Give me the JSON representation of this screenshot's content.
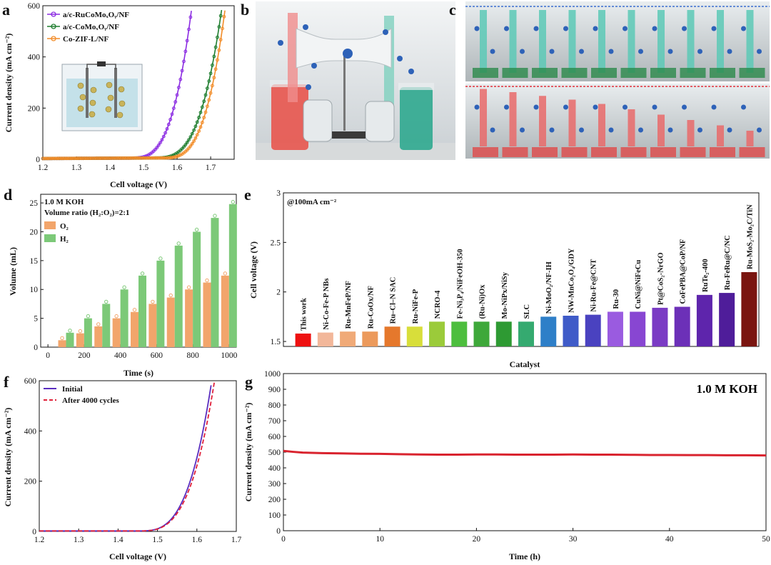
{
  "panel_labels": [
    "a",
    "b",
    "c",
    "d",
    "e",
    "f",
    "g"
  ],
  "colors": {
    "purple": "#8B2BE2",
    "green": "#1E7D2E",
    "orange": "#F28C28",
    "o2_bar": "#F2A56B",
    "h2_bar": "#7CC978",
    "initial": "#5A2DBF",
    "after": "#E0203A",
    "stability": "#D9232E",
    "acid": "#E8554E",
    "base": "#2FA88F"
  },
  "chart_data": [
    {
      "id": "a",
      "type": "line",
      "xlabel": "Cell voltage (V)",
      "ylabel": "Current density (mA cm⁻²)",
      "xlim": [
        1.2,
        1.77
      ],
      "ylim": [
        0,
        600
      ],
      "xticks": [
        1.2,
        1.3,
        1.4,
        1.5,
        1.6,
        1.7
      ],
      "yticks": [
        0,
        200,
        400,
        600
      ],
      "series": [
        {
          "name": "a/c-RuCoMoₓOᵧ/NF",
          "color": "#8B2BE2",
          "marker": "circle",
          "onset": 1.46,
          "v600": 1.645
        },
        {
          "name": "a/c-CoMoₓOᵧ/NF",
          "color": "#1E7D2E",
          "marker": "circle",
          "onset": 1.53,
          "v600": 1.735
        },
        {
          "name": "Co-ZIF-L/NF",
          "color": "#F28C28",
          "marker": "circle",
          "onset": 1.555,
          "v600": 1.745
        }
      ]
    },
    {
      "id": "d",
      "type": "bar",
      "annotations": [
        "1.0 M KOH",
        "Volume ratio (H₂:O₂)=2:1"
      ],
      "xlabel": "Time (s)",
      "ylabel": "Volume (mL)",
      "xlim": [
        -40,
        1040
      ],
      "ylim": [
        0,
        26.5
      ],
      "xticks": [
        0,
        200,
        400,
        600,
        800,
        1000
      ],
      "yticks": [
        0,
        5,
        10,
        15,
        20,
        25
      ],
      "x": [
        100,
        200,
        300,
        400,
        500,
        600,
        700,
        800,
        900,
        1000
      ],
      "series": [
        {
          "name": "O₂",
          "values": [
            1.2,
            2.4,
            3.6,
            5.0,
            6.1,
            7.5,
            8.6,
            10.0,
            11.2,
            12.4
          ]
        },
        {
          "name": "H₂",
          "values": [
            2.5,
            5.0,
            7.5,
            10.0,
            12.4,
            15.0,
            17.6,
            20.0,
            22.4,
            24.8
          ]
        }
      ]
    },
    {
      "id": "e",
      "type": "bar",
      "annotation": "@100mA cm⁻²",
      "xlabel": "Catalyst",
      "ylabel": "Cell voltage (V)",
      "ylim": [
        1.45,
        3.0
      ],
      "yticks": [
        1.5,
        2.0,
        2.5,
        3.0
      ],
      "categories": [
        "This work",
        "Ni-Co-Fe-P NBs",
        "Ru-MnFeP/NF",
        "Ru-CoOx/NF",
        "Ru–Cl–N SAC",
        "Ru-NiFe-P",
        "NCRO-4",
        "Fe-Ni₃P₄/NiFeOH-350",
        "(Ru-Ni)Ox",
        "Mo-NiPx/NiSy",
        "SLC",
        "Ni-MoO₂/NF-IH",
        "NW-MnCo₂O₄/GDY",
        "Ni-Ru-Fe@CNT",
        "Ru-30",
        "CuNi@NiFeCu",
        "Pt@CoS₂-NrGO",
        "CoFePBA@CoP/NF",
        "RuTe₂-400",
        "Ru-FeRu@C/NC",
        "Ru-MoS₂-Mo₂C/TiN"
      ],
      "values": [
        1.58,
        1.59,
        1.6,
        1.6,
        1.65,
        1.65,
        1.7,
        1.7,
        1.7,
        1.7,
        1.7,
        1.75,
        1.76,
        1.77,
        1.8,
        1.8,
        1.84,
        1.85,
        1.97,
        1.99,
        2.2
      ],
      "bar_colors": [
        "#EE1111",
        "#F2B79A",
        "#F0AA78",
        "#EC9A5C",
        "#E5782C",
        "#D8DE3A",
        "#9BCB3A",
        "#4DBE3E",
        "#3EA83A",
        "#2E9A33",
        "#35AA70",
        "#2E7FC8",
        "#3F5BC8",
        "#4A42C0",
        "#9A5BE0",
        "#8846D2",
        "#7A3BC4",
        "#6C30B8",
        "#5E25AC",
        "#4F1D9A",
        "#7A1510"
      ]
    },
    {
      "id": "f",
      "type": "line",
      "xlabel": "Cell voltage (V)",
      "ylabel": "Current density (mA cm⁻²)",
      "xlim": [
        1.2,
        1.7
      ],
      "ylim": [
        0,
        600
      ],
      "xticks": [
        1.2,
        1.3,
        1.4,
        1.5,
        1.6,
        1.7
      ],
      "yticks": [
        0,
        200,
        400,
        600
      ],
      "series": [
        {
          "name": "Initial",
          "color": "#5A2DBF",
          "style": "solid",
          "onset": 1.45,
          "v600": 1.638
        },
        {
          "name": "After 4000 cycles",
          "color": "#E0203A",
          "style": "dashed",
          "onset": 1.45,
          "v600": 1.645
        }
      ]
    },
    {
      "id": "g",
      "type": "line",
      "annotation": "1.0 M KOH",
      "xlabel": "Time (h)",
      "ylabel": "Current density (mA cm⁻²)",
      "xlim": [
        0,
        50
      ],
      "ylim": [
        0,
        1000
      ],
      "xticks": [
        0,
        10,
        20,
        30,
        40,
        50
      ],
      "yticks": [
        0,
        100,
        200,
        300,
        400,
        500,
        600,
        700,
        800,
        900,
        1000
      ],
      "x": [
        0,
        1,
        2,
        4,
        6,
        8,
        10,
        12,
        14,
        16,
        18,
        20,
        22,
        24,
        26,
        28,
        30,
        32,
        34,
        36,
        38,
        40,
        42,
        44,
        46,
        48,
        50
      ],
      "y": [
        508,
        502,
        497,
        494,
        492,
        490,
        489,
        487,
        485,
        484,
        484,
        485,
        485,
        484,
        484,
        484,
        485,
        484,
        484,
        483,
        482,
        482,
        481,
        481,
        480,
        480,
        479
      ],
      "series": [
        {
          "name": "Current density",
          "color": "#D9232E"
        }
      ]
    }
  ]
}
